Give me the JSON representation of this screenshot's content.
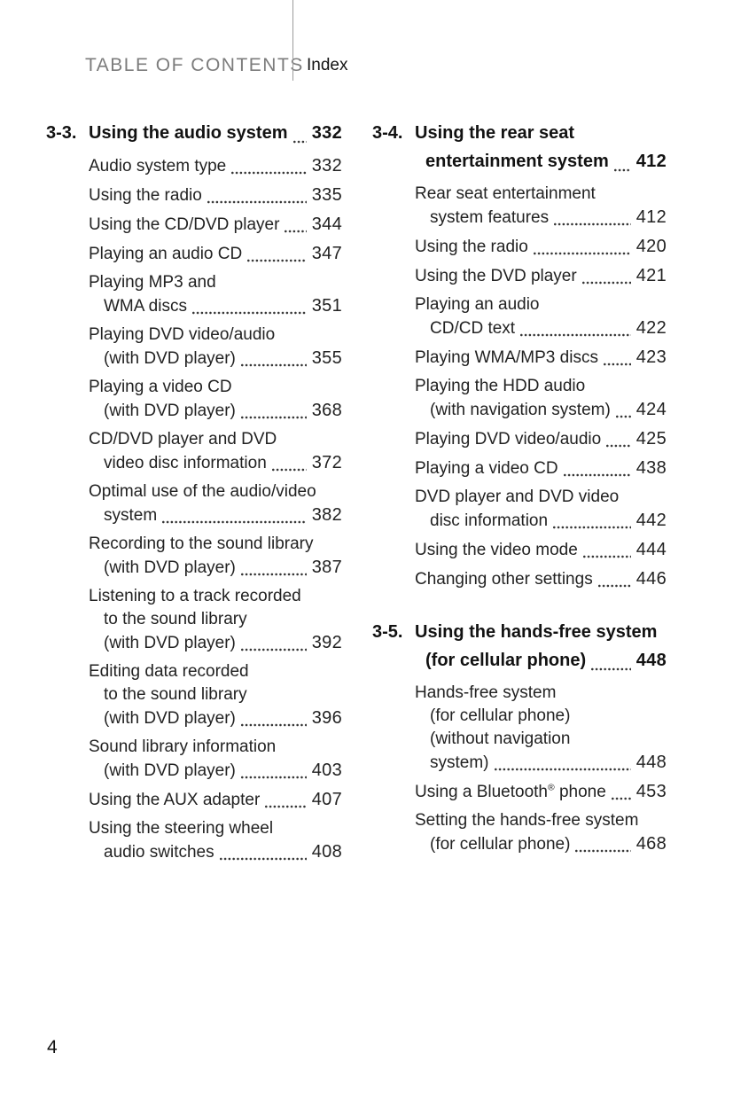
{
  "header": {
    "title": "TABLE OF CONTENTS",
    "tab": "Index"
  },
  "folio": "4",
  "columns": [
    {
      "sections": [
        {
          "label": "3-3.",
          "head": {
            "lines": [
              "Using the audio system"
            ],
            "page": "332"
          },
          "entries": [
            {
              "lines": [
                "Audio system type"
              ],
              "page": "332"
            },
            {
              "lines": [
                "Using the radio"
              ],
              "page": "335"
            },
            {
              "lines": [
                "Using the CD/DVD player"
              ],
              "page": "344"
            },
            {
              "lines": [
                "Playing an audio CD"
              ],
              "page": "347"
            },
            {
              "lines": [
                "Playing MP3 and",
                "WMA discs"
              ],
              "page": "351"
            },
            {
              "lines": [
                "Playing DVD video/audio",
                "(with DVD player)"
              ],
              "page": "355"
            },
            {
              "lines": [
                "Playing a video CD",
                "(with DVD player)"
              ],
              "page": "368"
            },
            {
              "lines": [
                "CD/DVD player and DVD",
                "video disc information"
              ],
              "page": "372"
            },
            {
              "lines": [
                "Optimal use of the audio/video",
                "system"
              ],
              "page": "382"
            },
            {
              "lines": [
                "Recording to the sound library",
                "(with DVD player)"
              ],
              "page": "387"
            },
            {
              "lines": [
                "Listening to a track recorded",
                "to the sound library",
                "(with DVD player)"
              ],
              "page": "392"
            },
            {
              "lines": [
                "Editing data recorded",
                "to the sound library",
                "(with DVD player)"
              ],
              "page": "396"
            },
            {
              "lines": [
                "Sound library information",
                "(with DVD player)"
              ],
              "page": "403"
            },
            {
              "lines": [
                "Using the AUX adapter"
              ],
              "page": "407"
            },
            {
              "lines": [
                "Using the steering wheel",
                "audio switches"
              ],
              "page": "408"
            }
          ]
        }
      ]
    },
    {
      "sections": [
        {
          "label": "3-4.",
          "head": {
            "lines": [
              "Using the rear seat",
              "entertainment system"
            ],
            "page": "412"
          },
          "entries": [
            {
              "lines": [
                "Rear seat entertainment",
                "system features"
              ],
              "page": "412"
            },
            {
              "lines": [
                "Using the radio"
              ],
              "page": "420"
            },
            {
              "lines": [
                "Using the DVD player"
              ],
              "page": "421"
            },
            {
              "lines": [
                "Playing an audio",
                "CD/CD text"
              ],
              "page": "422"
            },
            {
              "lines": [
                "Playing WMA/MP3 discs"
              ],
              "page": "423"
            },
            {
              "lines": [
                "Playing the HDD audio",
                "(with navigation system)"
              ],
              "page": "424"
            },
            {
              "lines": [
                "Playing DVD video/audio"
              ],
              "page": "425"
            },
            {
              "lines": [
                "Playing a video CD"
              ],
              "page": "438"
            },
            {
              "lines": [
                "DVD player and DVD video",
                "disc information"
              ],
              "page": "442"
            },
            {
              "lines": [
                "Using the video mode"
              ],
              "page": "444"
            },
            {
              "lines": [
                "Changing other settings"
              ],
              "page": "446"
            }
          ]
        },
        {
          "label": "3-5.",
          "head": {
            "lines": [
              "Using the hands-free system",
              "(for cellular phone)"
            ],
            "page": "448"
          },
          "entries": [
            {
              "lines": [
                "Hands-free system",
                "(for cellular phone)",
                "(without navigation",
                "system)"
              ],
              "page": "448"
            },
            {
              "lines": [
                "Using a Bluetooth® phone"
              ],
              "page": "453"
            },
            {
              "lines": [
                "Setting the hands-free system",
                "(for cellular phone)"
              ],
              "page": "468"
            }
          ]
        }
      ]
    }
  ]
}
